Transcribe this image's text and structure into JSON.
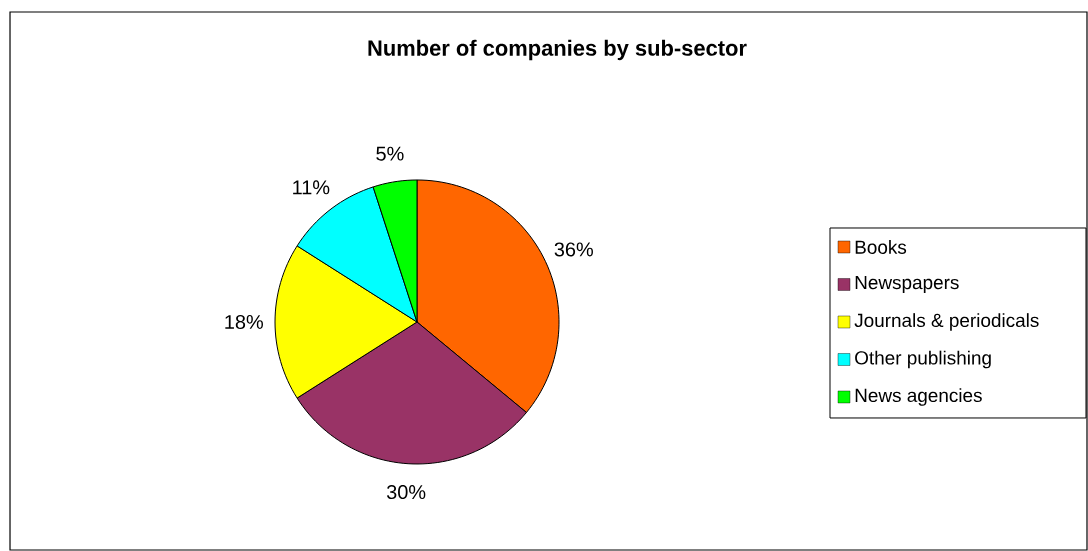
{
  "chart_data": {
    "type": "pie",
    "title": "Number of companies by sub-sector",
    "categories": [
      "Books",
      "Newspapers",
      "Journals & periodicals",
      "Other publishing",
      "News agencies"
    ],
    "values": [
      36,
      30,
      18,
      11,
      5
    ],
    "value_labels": [
      "36%",
      "30%",
      "18%",
      "11%",
      "5%"
    ],
    "colors": [
      "#ff6600",
      "#993366",
      "#ffff00",
      "#00ffff",
      "#00ff00"
    ],
    "legend": "right"
  }
}
